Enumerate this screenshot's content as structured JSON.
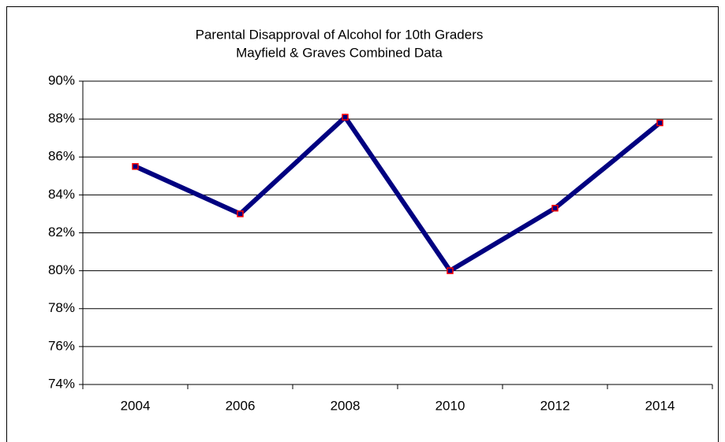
{
  "chart_data": {
    "type": "line",
    "title": "Parental Disapproval of Alcohol for 10th Graders",
    "subtitle": "Mayfield & Graves Combined Data",
    "categories": [
      "2004",
      "2006",
      "2008",
      "2010",
      "2012",
      "2014"
    ],
    "values": [
      85.5,
      83.0,
      88.1,
      80.0,
      83.3,
      87.8
    ],
    "color": "#000080",
    "marker_color": "#ff0000",
    "ylim": [
      74,
      90
    ],
    "yticks": [
      {
        "value": 74,
        "label": "74%"
      },
      {
        "value": 76,
        "label": "76%"
      },
      {
        "value": 78,
        "label": "78%"
      },
      {
        "value": 80,
        "label": "80%"
      },
      {
        "value": 82,
        "label": "82%"
      },
      {
        "value": 84,
        "label": "84%"
      },
      {
        "value": 86,
        "label": "86%"
      },
      {
        "value": 88,
        "label": "88%"
      },
      {
        "value": 90,
        "label": "90%"
      }
    ],
    "grid": true
  }
}
